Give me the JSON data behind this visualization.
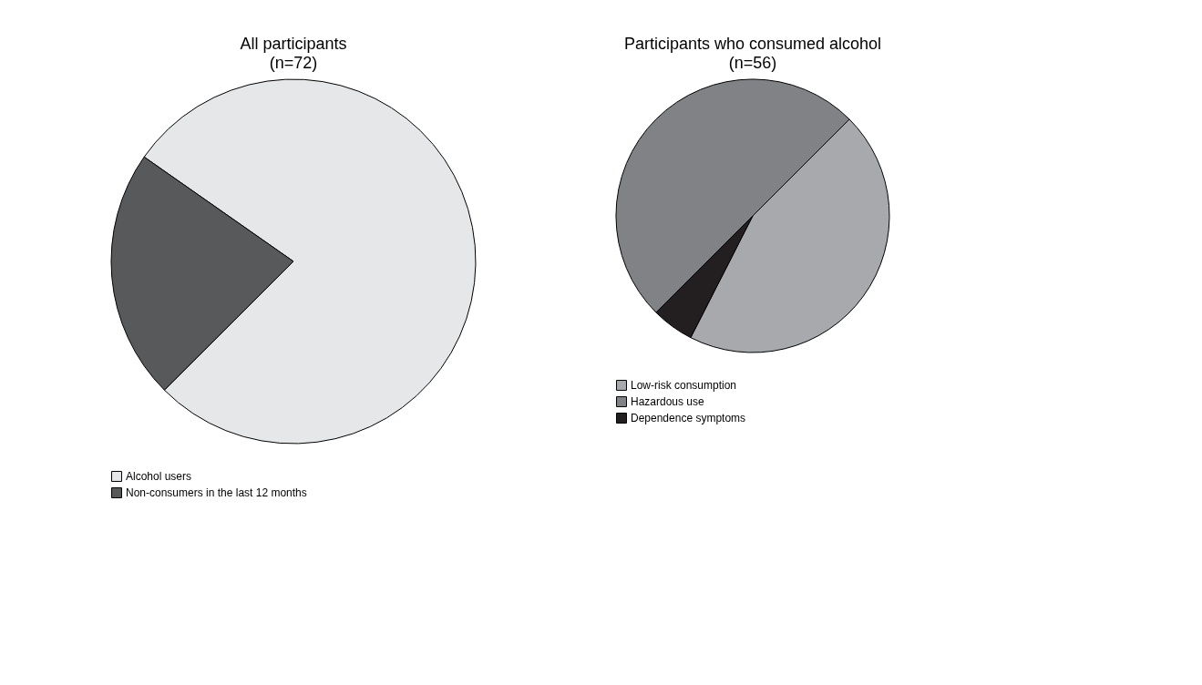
{
  "chart_data": [
    {
      "type": "pie",
      "title": "All participants",
      "subtitle": "(n=72)",
      "categories": [
        "Alcohol users",
        "Non-consumers in the last 12 months"
      ],
      "values": [
        77.8,
        22.2
      ],
      "colors": [
        "#e6e7e8",
        "#58595b"
      ],
      "legend": "bottom"
    },
    {
      "type": "pie",
      "title": "Participants who consumed alcohol",
      "subtitle": "(n=56)",
      "categories": [
        "Low-risk consumption",
        "Hazardous use",
        "Dependence symptoms"
      ],
      "values": [
        45,
        50,
        5
      ],
      "colors": [
        "#a7a9ac",
        "#808285",
        "#231f20"
      ],
      "legend": "bottom"
    }
  ]
}
